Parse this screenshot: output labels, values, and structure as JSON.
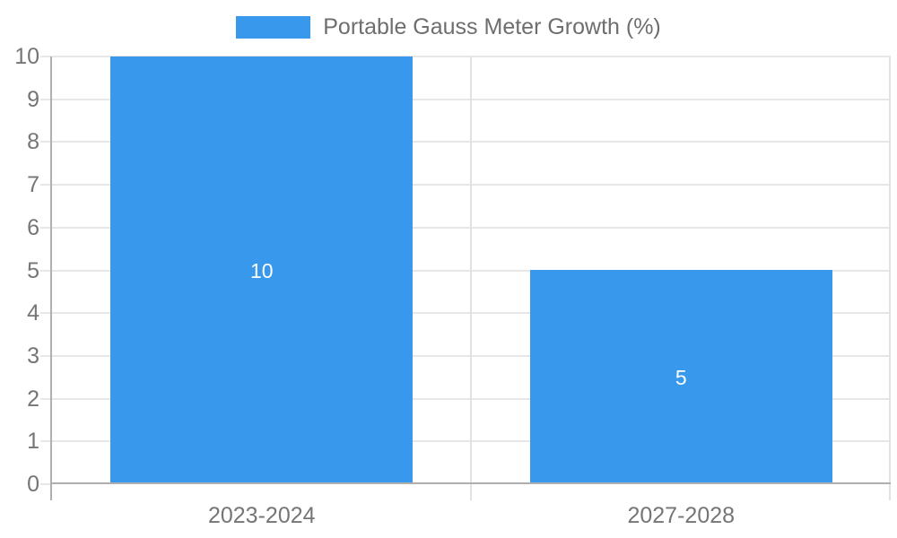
{
  "chart_data": {
    "type": "bar",
    "title": "",
    "legend": {
      "label": "Portable Gauss Meter Growth (%)",
      "position": "top-center"
    },
    "categories": [
      "2023-2024",
      "2027-2028"
    ],
    "series": [
      {
        "name": "Portable Gauss Meter Growth (%)",
        "values": [
          10,
          5
        ]
      }
    ],
    "data_labels": [
      "10",
      "5"
    ],
    "xlabel": "",
    "ylabel": "",
    "ylim": [
      0,
      10
    ],
    "ytick_step": 1,
    "ytick_labels": [
      "0",
      "1",
      "2",
      "3",
      "4",
      "5",
      "6",
      "7",
      "8",
      "9",
      "10"
    ],
    "grid": true,
    "colors": {
      "bar": "#3899EC",
      "data_label_text": "#FFFFFF",
      "axis_text": "#757575",
      "legend_text": "#6E6E6E",
      "gridline": "#E7E7E7",
      "category_line": "#E2E2E2",
      "axis_line": "#AFAFAF",
      "background": "#FFFFFF"
    }
  }
}
